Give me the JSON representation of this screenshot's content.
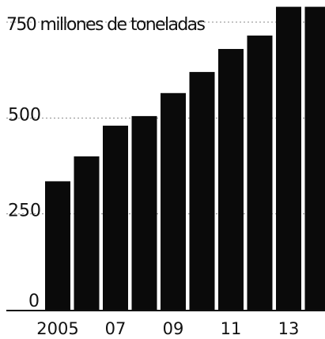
{
  "chart_data": {
    "type": "bar",
    "title": "",
    "xlabel": "",
    "ylabel": "",
    "y_unit_label": "750 millones de toneladas",
    "categories": [
      "2005",
      "2006",
      "2007",
      "2008",
      "2009",
      "2010",
      "2011",
      "2012",
      "2013",
      "2014"
    ],
    "values": [
      335,
      400,
      480,
      505,
      565,
      620,
      680,
      715,
      790,
      790
    ],
    "ylim": [
      0,
      750
    ],
    "y_ticks": [
      {
        "value": 0,
        "label": "0"
      },
      {
        "value": 250,
        "label": "250"
      },
      {
        "value": 500,
        "label": "500"
      },
      {
        "value": 750,
        "label": "750"
      }
    ],
    "x_tick_labels": [
      {
        "category": "2005",
        "label": "2005"
      },
      {
        "category": "2007",
        "label": "07"
      },
      {
        "category": "2009",
        "label": "09"
      },
      {
        "category": "2011",
        "label": "11"
      },
      {
        "category": "2013",
        "label": "13"
      }
    ],
    "grid": true,
    "legend": "none",
    "bar_color": "#0a0a0a",
    "grid_color": "#8a8a8a",
    "axis_color": "#111111"
  }
}
